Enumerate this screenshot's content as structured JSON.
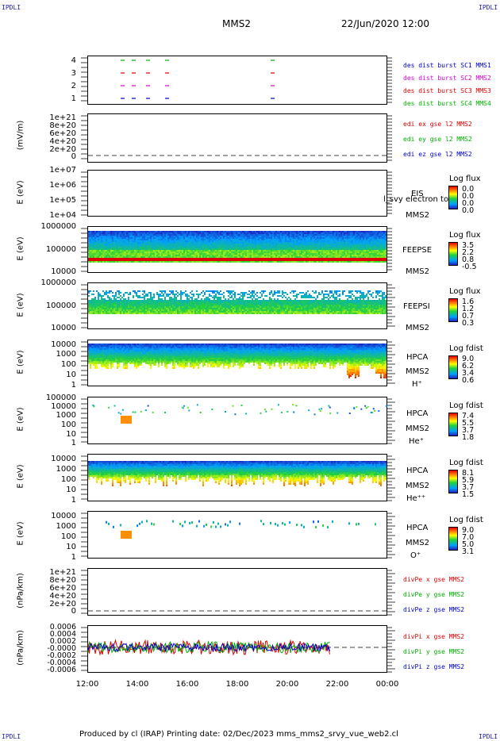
{
  "corner_label": "IPDLI",
  "header": {
    "title": "MMS2",
    "date": "22/Jun/2020 12:00"
  },
  "chart_data": [
    {
      "type": "scatter",
      "panel": "burst",
      "yticks": [
        "4",
        "3",
        "2",
        "1"
      ],
      "legend": [
        "des dist burst SC1 MMS1",
        "des dist burst SC2 MMS2",
        "des dist burst SC3 MMS3",
        "des dist burst SC4 MMS4"
      ],
      "colors": [
        "#0000cc",
        "#d000d0",
        "#e00000",
        "#00b000"
      ]
    },
    {
      "type": "line",
      "panel": "edi",
      "ylabel": "(mV/m)",
      "yticks": [
        "1e+21",
        "8e+20",
        "6e+20",
        "4e+20",
        "2e+20",
        "0"
      ],
      "legend": [
        "edi ex gse l2 MMS2",
        "edi ey gse l2 MMS2",
        "edi ez gse l2 MMS2"
      ],
      "colors": [
        "#e00000",
        "#00b000",
        "#0000cc"
      ]
    },
    {
      "type": "heatmap",
      "panel": "eis",
      "ylabel": "E (eV)",
      "yticks": [
        "1e+07",
        "1e+06",
        "1e+05",
        "1e+04"
      ],
      "labels": [
        "EIS",
        "MMS2"
      ],
      "overlay": "l_svy electron to",
      "colorbar": {
        "title": "Log flux",
        "values": [
          "0.0",
          "0.0",
          "0.0",
          "0.0"
        ]
      }
    },
    {
      "type": "heatmap",
      "panel": "feeps_e",
      "ylabel": "E (eV)",
      "yticks": [
        "1000000",
        "100000",
        "10000"
      ],
      "labels": [
        "FEEPSE",
        "MMS2"
      ],
      "colorbar": {
        "title": "Log flux",
        "values": [
          "3.5",
          "2.2",
          "0.8",
          "-0.5"
        ]
      }
    },
    {
      "type": "heatmap",
      "panel": "feeps_i",
      "ylabel": "E (eV)",
      "yticks": [
        "1000000",
        "100000",
        "10000"
      ],
      "labels": [
        "FEEPSI",
        "MMS2"
      ],
      "colorbar": {
        "title": "Log flux",
        "values": [
          "1.6",
          "1.2",
          "0.7",
          "0.3"
        ]
      }
    },
    {
      "type": "heatmap",
      "panel": "hpca_h",
      "ylabel": "E (eV)",
      "yticks": [
        "10000",
        "1000",
        "100",
        "10",
        "1"
      ],
      "labels": [
        "HPCA",
        "MMS2",
        "H⁺"
      ],
      "colorbar": {
        "title": "Log fdist",
        "values": [
          "9.0",
          "6.2",
          "3.4",
          "0.6"
        ]
      }
    },
    {
      "type": "heatmap",
      "panel": "hpca_he",
      "ylabel": "E (eV)",
      "yticks": [
        "100000",
        "10000",
        "1000",
        "100",
        "10",
        "1"
      ],
      "labels": [
        "HPCA",
        "MMS2",
        "He⁺"
      ],
      "colorbar": {
        "title": "Log fdist",
        "values": [
          "7.4",
          "5.5",
          "3.7",
          "1.8"
        ]
      }
    },
    {
      "type": "heatmap",
      "panel": "hpca_hepp",
      "ylabel": "E (eV)",
      "yticks": [
        "10000",
        "1000",
        "100",
        "10",
        "1"
      ],
      "labels": [
        "HPCA",
        "MMS2",
        "He⁺⁺"
      ],
      "colorbar": {
        "title": "Log fdist",
        "values": [
          "8.1",
          "5.9",
          "3.7",
          "1.5"
        ]
      }
    },
    {
      "type": "heatmap",
      "panel": "hpca_o",
      "ylabel": "E (eV)",
      "yticks": [
        "10000",
        "1000",
        "100",
        "10",
        "1"
      ],
      "labels": [
        "HPCA",
        "MMS2",
        "O⁺"
      ],
      "colorbar": {
        "title": "Log fdist",
        "values": [
          "9.0",
          "7.0",
          "5.0",
          "3.1"
        ]
      }
    },
    {
      "type": "line",
      "panel": "divpe",
      "ylabel": "(nPa/km)",
      "yticks": [
        "1e+21",
        "8e+20",
        "6e+20",
        "4e+20",
        "2e+20",
        "0"
      ],
      "legend": [
        "divPe x gse MMS2",
        "divPe y gse MMS2",
        "divPe z gse MMS2"
      ],
      "colors": [
        "#e00000",
        "#00b000",
        "#0000cc"
      ]
    },
    {
      "type": "line",
      "panel": "divpi",
      "ylabel": "(nPa/km)",
      "yticks": [
        "0.0006",
        "0.0004",
        "0.0002",
        "-0.0000",
        "-0.0002",
        "-0.0004",
        "-0.0006"
      ],
      "legend": [
        "divPi x gse MMS2",
        "divPi y gse MMS2",
        "divPi z gse MMS2"
      ],
      "colors": [
        "#e00000",
        "#00b000",
        "#0000cc"
      ]
    }
  ],
  "xaxis": {
    "ticks": [
      "12:00",
      "14:00",
      "16:00",
      "18:00",
      "20:00",
      "22:00",
      "00:00"
    ]
  },
  "footer": "Produced by cl (IRAP)   Printing date: 02/Dec/2023   mms_mms2_srvy_vue_web2.cl"
}
